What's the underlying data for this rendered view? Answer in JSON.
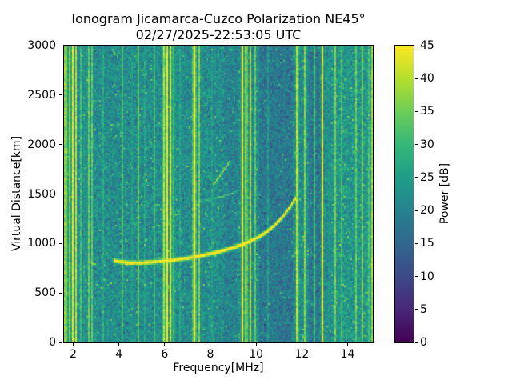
{
  "chart_data": {
    "type": "heatmap",
    "title": "Ionogram Jicamarca-Cuzco Polarization NE45°",
    "subtitle": "02/27/2025-22:53:05 UTC",
    "xlabel": "Frequency[MHz]",
    "ylabel": "Virtual Distance[km]",
    "colorbar_label": "Power [dB]",
    "colormap": "viridis",
    "x_range": [
      1.6,
      15.1
    ],
    "y_range": [
      0,
      3000
    ],
    "value_range": [
      0,
      45
    ],
    "x_ticks": [
      2,
      4,
      6,
      8,
      10,
      12,
      14
    ],
    "y_ticks": [
      0,
      500,
      1000,
      1500,
      2000,
      2500,
      3000
    ],
    "colorbar_ticks": [
      0,
      5,
      10,
      15,
      20,
      25,
      30,
      35,
      40,
      45
    ],
    "noise": {
      "mean": 22,
      "spread": 5,
      "seed": 20250227
    },
    "bands": [
      {
        "from": 10.15,
        "to": 11.6,
        "delta": -4
      },
      {
        "from": 12.3,
        "to": 12.8,
        "delta": -4
      },
      {
        "from": 8.6,
        "to": 9.25,
        "delta": -2
      },
      {
        "from": 13.3,
        "to": 15.1,
        "delta": 2
      }
    ],
    "rfi_lines": [
      {
        "freq": 1.67,
        "width": 0.05,
        "intensity": 45
      },
      {
        "freq": 1.82,
        "width": 0.04,
        "intensity": 42
      },
      {
        "freq": 1.97,
        "width": 0.05,
        "intensity": 45
      },
      {
        "freq": 2.12,
        "width": 0.04,
        "intensity": 40
      },
      {
        "freq": 2.32,
        "width": 0.03,
        "intensity": 34
      },
      {
        "freq": 2.5,
        "width": 0.03,
        "intensity": 33
      },
      {
        "freq": 2.66,
        "width": 0.04,
        "intensity": 40
      },
      {
        "freq": 2.82,
        "width": 0.03,
        "intensity": 33
      },
      {
        "freq": 3.3,
        "width": 0.03,
        "intensity": 29
      },
      {
        "freq": 3.7,
        "width": 0.03,
        "intensity": 30
      },
      {
        "freq": 4.15,
        "width": 0.03,
        "intensity": 30
      },
      {
        "freq": 4.55,
        "width": 0.03,
        "intensity": 31
      },
      {
        "freq": 4.85,
        "width": 0.03,
        "intensity": 32
      },
      {
        "freq": 5.15,
        "width": 0.03,
        "intensity": 30
      },
      {
        "freq": 5.55,
        "width": 0.03,
        "intensity": 29
      },
      {
        "freq": 5.95,
        "width": 0.05,
        "intensity": 43
      },
      {
        "freq": 6.1,
        "width": 0.06,
        "intensity": 45
      },
      {
        "freq": 6.27,
        "width": 0.05,
        "intensity": 44
      },
      {
        "freq": 6.42,
        "width": 0.04,
        "intensity": 37
      },
      {
        "freq": 6.65,
        "width": 0.03,
        "intensity": 32
      },
      {
        "freq": 7.3,
        "width": 0.08,
        "intensity": 45
      },
      {
        "freq": 7.5,
        "width": 0.04,
        "intensity": 36
      },
      {
        "freq": 8.05,
        "width": 0.03,
        "intensity": 30
      },
      {
        "freq": 9.4,
        "width": 0.06,
        "intensity": 45
      },
      {
        "freq": 9.57,
        "width": 0.05,
        "intensity": 43
      },
      {
        "freq": 9.75,
        "width": 0.04,
        "intensity": 38
      },
      {
        "freq": 9.95,
        "width": 0.03,
        "intensity": 34
      },
      {
        "freq": 10.5,
        "width": 0.03,
        "intensity": 28
      },
      {
        "freq": 10.9,
        "width": 0.03,
        "intensity": 27
      },
      {
        "freq": 11.25,
        "width": 0.03,
        "intensity": 28
      },
      {
        "freq": 11.8,
        "width": 0.05,
        "intensity": 44
      },
      {
        "freq": 12.15,
        "width": 0.04,
        "intensity": 42
      },
      {
        "freq": 12.55,
        "width": 0.03,
        "intensity": 30
      },
      {
        "freq": 12.9,
        "width": 0.04,
        "intensity": 43
      },
      {
        "freq": 13.15,
        "width": 0.03,
        "intensity": 31
      },
      {
        "freq": 13.45,
        "width": 0.04,
        "intensity": 35
      },
      {
        "freq": 13.75,
        "width": 0.03,
        "intensity": 33
      },
      {
        "freq": 14.05,
        "width": 0.03,
        "intensity": 33
      },
      {
        "freq": 14.35,
        "width": 0.04,
        "intensity": 36
      },
      {
        "freq": 14.65,
        "width": 0.03,
        "intensity": 34
      },
      {
        "freq": 14.9,
        "width": 0.04,
        "intensity": 37
      },
      {
        "freq": 15.05,
        "width": 0.04,
        "intensity": 39
      }
    ],
    "traces": [
      {
        "name": "F-layer echo trace",
        "intensity": 46,
        "half_width_km": 24,
        "points": [
          [
            3.75,
            835
          ],
          [
            4.1,
            818
          ],
          [
            4.5,
            810
          ],
          [
            5.0,
            811
          ],
          [
            5.5,
            818
          ],
          [
            6.0,
            828
          ],
          [
            6.5,
            841
          ],
          [
            7.0,
            857
          ],
          [
            7.5,
            877
          ],
          [
            8.0,
            901
          ],
          [
            8.5,
            929
          ],
          [
            9.0,
            963
          ],
          [
            9.5,
            1003
          ],
          [
            10.0,
            1056
          ],
          [
            10.4,
            1112
          ],
          [
            10.8,
            1185
          ],
          [
            11.1,
            1258
          ],
          [
            11.4,
            1345
          ],
          [
            11.6,
            1415
          ],
          [
            11.72,
            1465
          ]
        ]
      },
      {
        "name": "second-hop echo segment",
        "intensity": 40,
        "half_width_km": 16,
        "points": [
          [
            8.1,
            1590
          ],
          [
            8.4,
            1680
          ],
          [
            8.7,
            1780
          ],
          [
            8.85,
            1830
          ]
        ]
      },
      {
        "name": "faint upper trace",
        "intensity": 30,
        "half_width_km": 12,
        "points": [
          [
            7.35,
            1415
          ],
          [
            7.9,
            1445
          ],
          [
            8.5,
            1480
          ],
          [
            9.1,
            1520
          ]
        ]
      }
    ]
  }
}
